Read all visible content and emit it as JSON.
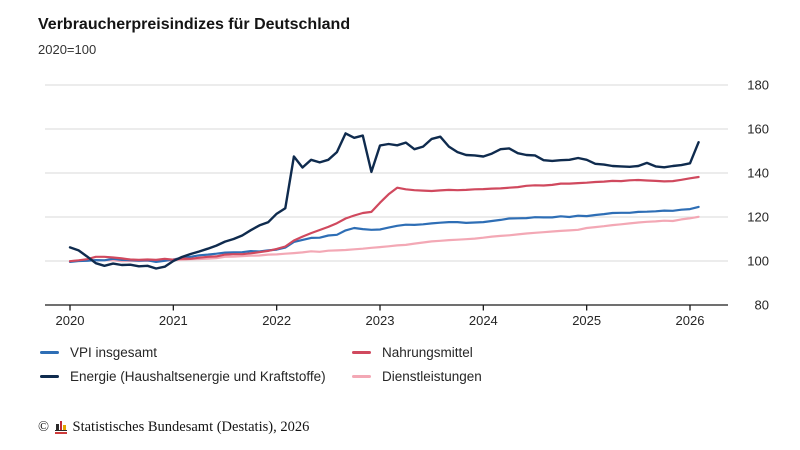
{
  "chart_data": {
    "type": "line",
    "title": "Verbraucherpreisindizes für Deutschland",
    "subtitle": "2020=100",
    "x_unit": "month",
    "x_start": "2020-01",
    "x_end": "2026-02",
    "x_tick_labels": [
      "2020",
      "2021",
      "2022",
      "2023",
      "2024",
      "2025",
      "2026"
    ],
    "y_ticks": [
      80,
      100,
      120,
      140,
      160,
      180
    ],
    "ylim": [
      80,
      186
    ],
    "grid": "horizontal-light-gray",
    "legend_position": "bottom",
    "axis_color": "#1a1a1a",
    "grid_color": "#d9d9d9",
    "series": [
      {
        "name": "VPI insgesamt",
        "color": "#2e6eb5",
        "values": [
          99.6,
          100.0,
          100.1,
          100.4,
          100.3,
          101.0,
          100.5,
          100.4,
          100.2,
          100.3,
          99.6,
          100.1,
          100.7,
          101.4,
          101.9,
          102.6,
          102.9,
          103.3,
          103.8,
          103.9,
          104.0,
          104.5,
          104.3,
          104.8,
          105.2,
          106.1,
          108.7,
          109.6,
          110.5,
          110.6,
          111.6,
          111.9,
          113.9,
          115.0,
          114.5,
          114.2,
          114.3,
          115.2,
          116.0,
          116.5,
          116.4,
          116.7,
          117.1,
          117.4,
          117.7,
          117.7,
          117.3,
          117.5,
          117.7,
          118.2,
          118.7,
          119.3,
          119.4,
          119.5,
          119.9,
          119.8,
          119.8,
          120.3,
          120.0,
          120.6,
          120.4,
          120.9,
          121.3,
          121.8,
          121.9,
          121.9,
          122.3,
          122.4,
          122.6,
          122.9,
          122.8,
          123.3,
          123.6,
          124.6
        ]
      },
      {
        "name": "Nahrungsmittel",
        "color": "#d0495e",
        "values": [
          99.9,
          100.3,
          100.8,
          101.9,
          101.9,
          101.6,
          101.2,
          100.7,
          100.5,
          100.7,
          100.5,
          101.0,
          100.6,
          101.1,
          101.0,
          101.5,
          101.9,
          102.1,
          102.9,
          103.1,
          103.1,
          103.5,
          104.0,
          104.6,
          105.5,
          106.6,
          109.3,
          111.1,
          112.7,
          114.1,
          115.5,
          117.2,
          119.3,
          120.7,
          121.8,
          122.3,
          126.5,
          130.3,
          133.3,
          132.6,
          132.2,
          132.0,
          131.8,
          132.1,
          132.3,
          132.2,
          132.3,
          132.6,
          132.7,
          132.9,
          133.0,
          133.3,
          133.6,
          134.2,
          134.4,
          134.3,
          134.6,
          135.2,
          135.2,
          135.4,
          135.6,
          135.9,
          136.1,
          136.4,
          136.3,
          136.7,
          136.8,
          136.6,
          136.4,
          136.2,
          136.3,
          136.9,
          137.6,
          138.2
        ]
      },
      {
        "name": "Energie (Haushaltsenergie und Kraftstoffe)",
        "color": "#0f2b4e",
        "values": [
          106.2,
          104.8,
          102.0,
          99.0,
          97.8,
          98.8,
          98.2,
          98.3,
          97.6,
          97.8,
          96.6,
          97.4,
          100.0,
          101.8,
          103.2,
          104.3,
          105.6,
          107.0,
          108.8,
          110.0,
          111.6,
          114.0,
          116.2,
          117.6,
          121.5,
          124.0,
          147.5,
          142.5,
          146.0,
          144.8,
          146.0,
          149.5,
          158.0,
          156.0,
          157.0,
          140.5,
          152.5,
          153.2,
          152.6,
          153.8,
          150.8,
          152.0,
          155.5,
          156.5,
          152.0,
          149.5,
          148.2,
          148.0,
          147.5,
          148.8,
          150.8,
          151.2,
          149.0,
          148.2,
          148.0,
          145.8,
          145.5,
          145.8,
          146.0,
          146.8,
          146.0,
          144.2,
          143.8,
          143.2,
          143.0,
          142.8,
          143.2,
          144.6,
          143.0,
          142.6,
          143.2,
          143.6,
          144.4,
          154.0
        ]
      },
      {
        "name": "Dienstleistungen",
        "color": "#f3a8b5",
        "values": [
          99.9,
          100.2,
          100.3,
          100.4,
          100.3,
          100.3,
          99.9,
          100.0,
          100.0,
          100.1,
          100.0,
          100.2,
          100.3,
          100.6,
          100.8,
          100.9,
          101.1,
          101.3,
          101.9,
          102.0,
          102.2,
          102.4,
          102.5,
          102.9,
          103.0,
          103.3,
          103.6,
          103.9,
          104.4,
          104.2,
          104.7,
          104.8,
          105.0,
          105.3,
          105.6,
          106.0,
          106.3,
          106.7,
          107.1,
          107.3,
          107.9,
          108.4,
          108.9,
          109.2,
          109.5,
          109.7,
          109.9,
          110.2,
          110.6,
          111.1,
          111.4,
          111.7,
          112.1,
          112.5,
          112.8,
          113.1,
          113.4,
          113.7,
          113.9,
          114.2,
          115.0,
          115.4,
          115.8,
          116.3,
          116.7,
          117.1,
          117.5,
          117.8,
          118.0,
          118.3,
          118.2,
          118.9,
          119.4,
          120.1
        ]
      }
    ]
  },
  "footer": {
    "symbol": "©",
    "logo_icon": "destatis-bars-icon",
    "text": "Statistisches Bundesamt (Destatis), 2026"
  }
}
